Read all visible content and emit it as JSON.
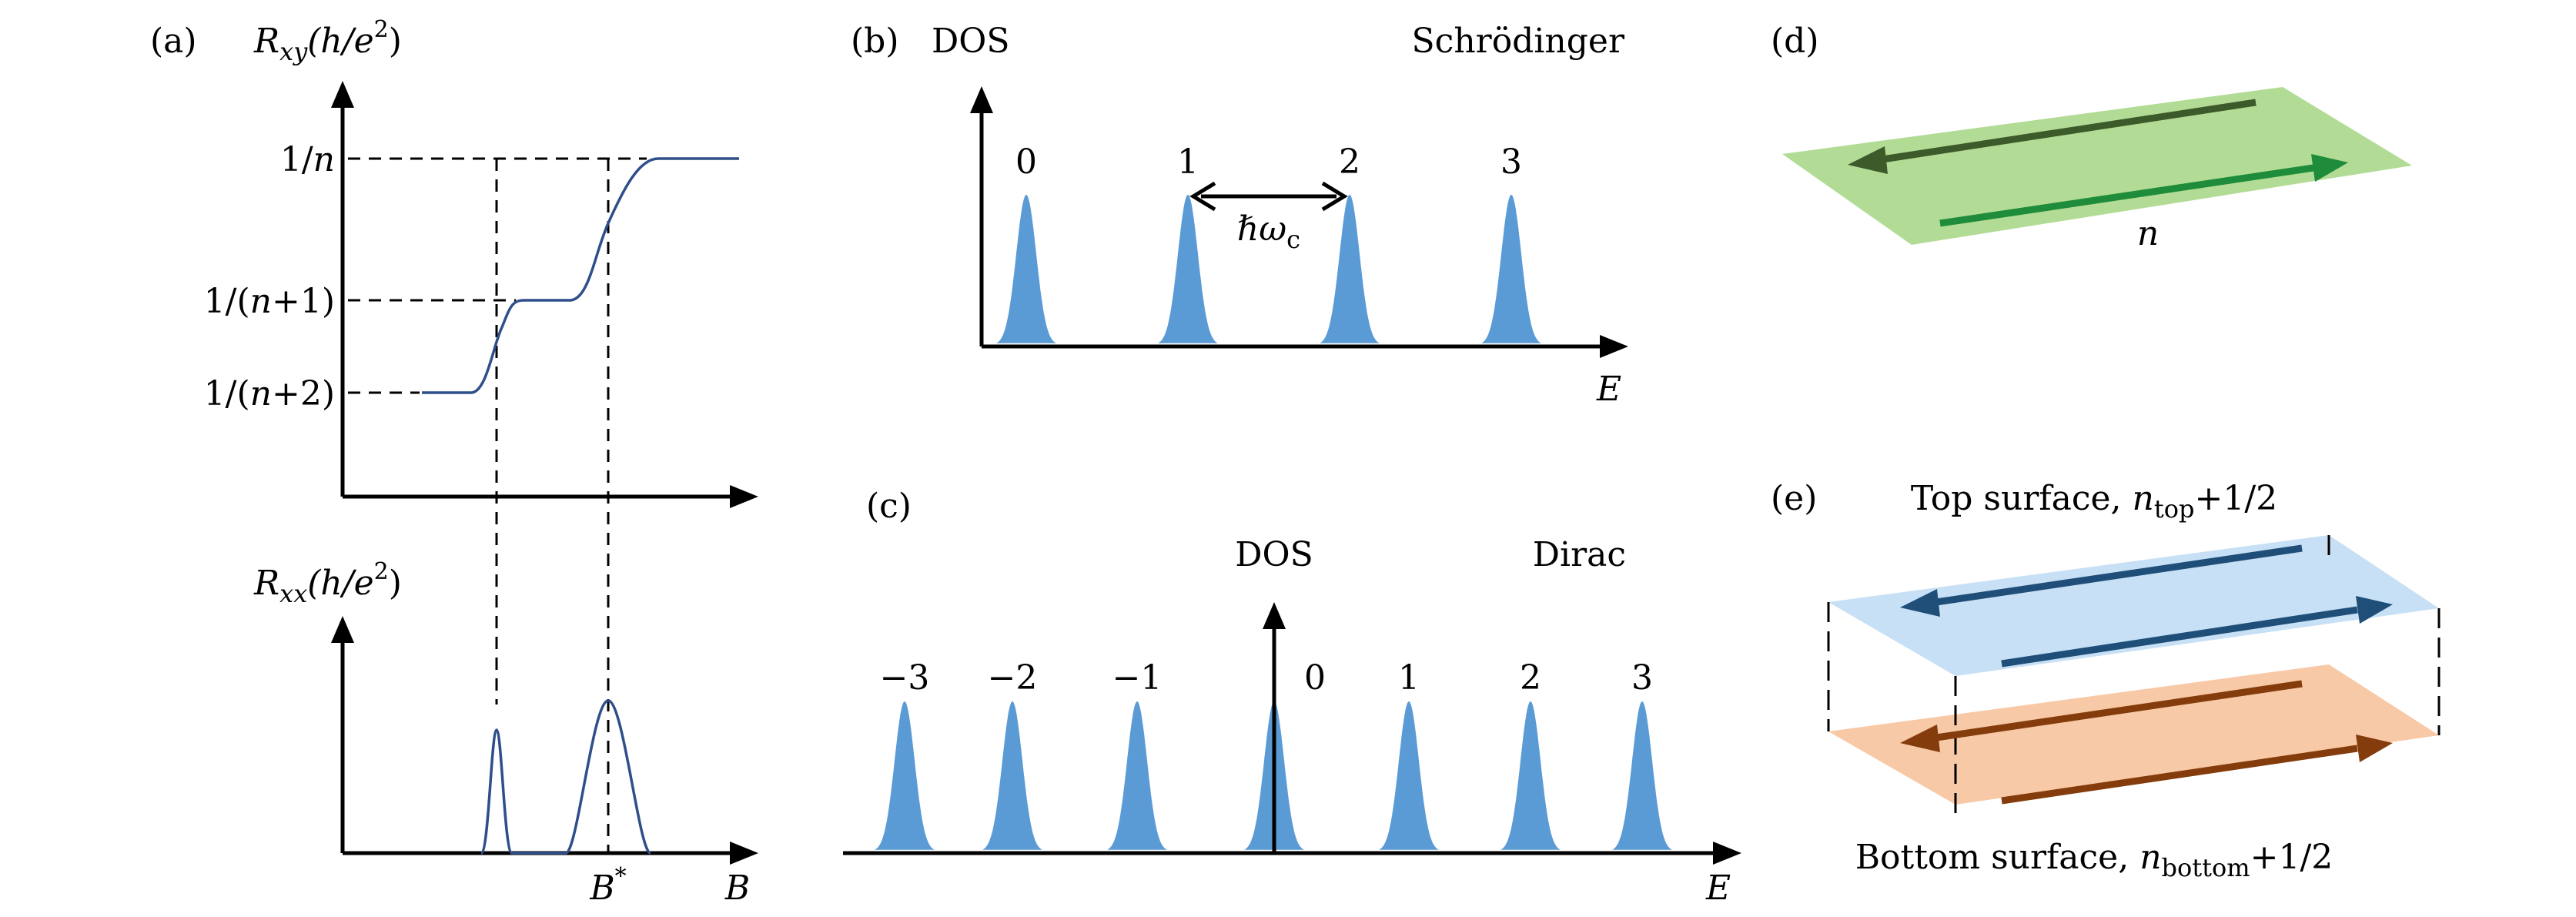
{
  "colors": {
    "hall_curve": "#2f4f8a",
    "dos_peak": "#5b9bd5",
    "axis": "#000000",
    "plane_d": "#b2dc95",
    "arrow_dark_green": "#3d5a2a",
    "arrow_green": "#1e8c3a",
    "plane_top": "#c7e0f5",
    "arrow_blue": "#1f4e79",
    "plane_bottom": "#f8c9a6",
    "arrow_brown": "#843c0c"
  },
  "panel_a": {
    "label": "(a)",
    "top": {
      "ylabel_main": "R",
      "ylabel_sub": "xy",
      "ylabel_unit": "(h/e",
      "ylabel_sup": "2",
      "ylabel_close": ")",
      "ticks": [
        {
          "main": "1/",
          "var": "n",
          "rest": ""
        },
        {
          "main": "1/(",
          "var": "n",
          "rest": "+1)"
        },
        {
          "main": "1/(",
          "var": "n",
          "rest": "+2)"
        }
      ]
    },
    "bottom": {
      "ylabel_main": "R",
      "ylabel_sub": "xx",
      "ylabel_unit": "(h/e",
      "ylabel_sup": "2",
      "ylabel_close": ")",
      "xlabel": "B",
      "bstar_main": "B",
      "bstar_sup": "*"
    }
  },
  "panel_b": {
    "label": "(b)",
    "ylabel": "DOS",
    "title": "Schrödinger",
    "xlabel": "E",
    "peaks": [
      "0",
      "1",
      "2",
      "3"
    ],
    "gap_label_main": "ℏω",
    "gap_label_sub": "c"
  },
  "panel_c": {
    "label": "(c)",
    "ylabel": "DOS",
    "title": "Dirac",
    "xlabel": "E",
    "peaks": [
      "−3",
      "−2",
      "−1",
      "0",
      "1",
      "2",
      "3"
    ]
  },
  "panel_d": {
    "label": "(d)",
    "index": "n"
  },
  "panel_e": {
    "label": "(e)",
    "top_text": "Top surface, ",
    "top_var": "n",
    "top_sub": "top",
    "top_rest": "+1/2",
    "bottom_text": "Bottom surface, ",
    "bottom_var": "n",
    "bottom_sub": "bottom",
    "bottom_rest": "+1/2"
  }
}
